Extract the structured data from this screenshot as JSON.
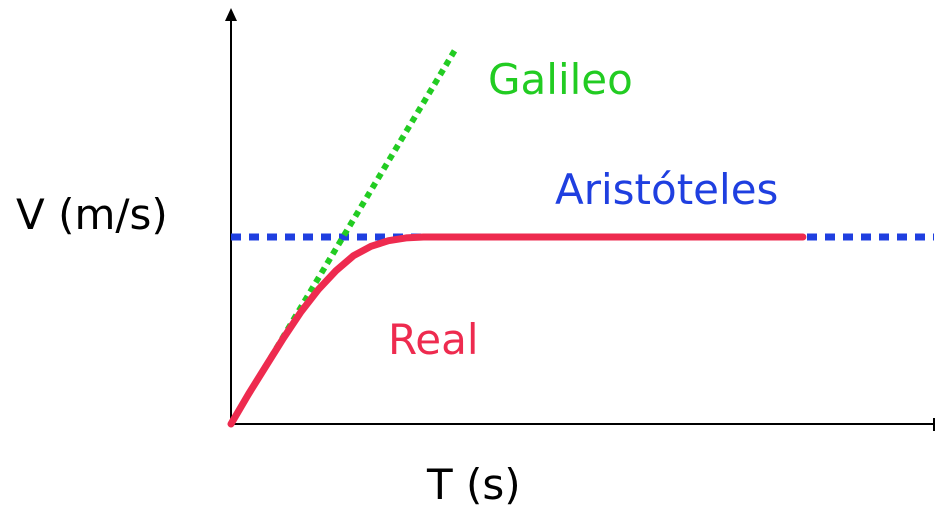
{
  "chart_data": {
    "type": "line",
    "title": "",
    "xlabel": "T (s)",
    "ylabel": "V (m/s)",
    "xlim": [
      0,
      10
    ],
    "ylim": [
      0,
      2
    ],
    "grid": false,
    "legend": "inline labels",
    "series": [
      {
        "name": "Galileo",
        "color": "#22cc22",
        "style": "dotted",
        "x": [
          0,
          3.2
        ],
        "y": [
          0,
          2.0
        ]
      },
      {
        "name": "Aristóteles",
        "color": "#1f3fe0",
        "style": "dotted",
        "x": [
          0,
          10
        ],
        "y": [
          1,
          1
        ]
      },
      {
        "name": "Real",
        "color": "#ee2b4f",
        "style": "solid",
        "x": [
          0,
          0.25,
          0.5,
          0.75,
          1.0,
          1.25,
          1.5,
          1.75,
          2.0,
          2.25,
          2.5,
          2.75,
          3.0,
          4.0,
          5.0,
          6.0,
          7.0,
          8.17
        ],
        "y": [
          0,
          0.16,
          0.31,
          0.46,
          0.6,
          0.72,
          0.82,
          0.9,
          0.95,
          0.98,
          0.995,
          1.0,
          1.0,
          1.0,
          1.0,
          1.0,
          1.0,
          1.0
        ]
      }
    ]
  }
}
